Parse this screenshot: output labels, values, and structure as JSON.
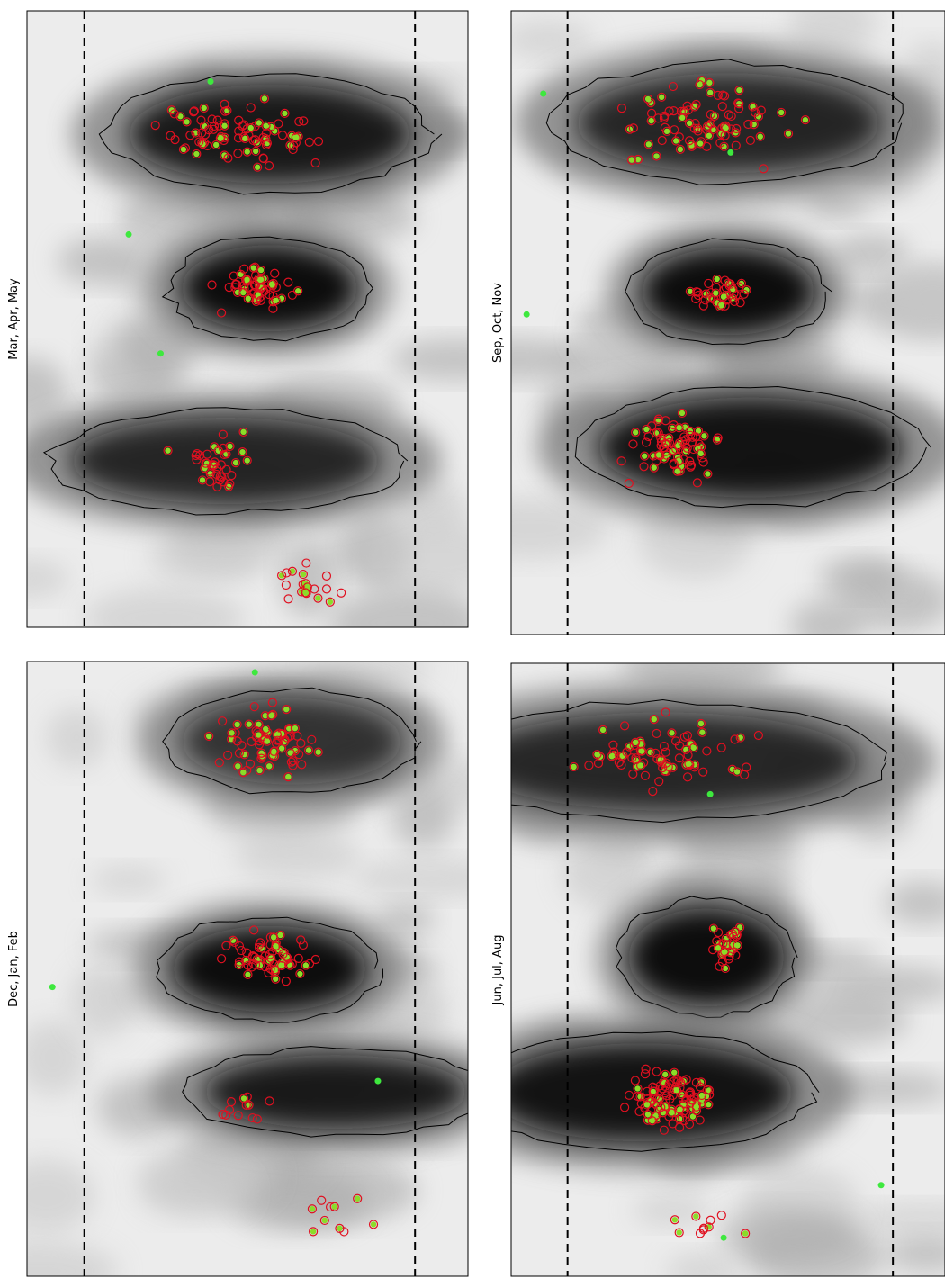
{
  "panels": [
    {
      "label": "Mar, Apr, May"
    },
    {
      "label": "Sep, Oct, Nov"
    },
    {
      "label": "Dec, Jan, Feb"
    },
    {
      "label": "Jun, Jul, Aug"
    }
  ]
}
